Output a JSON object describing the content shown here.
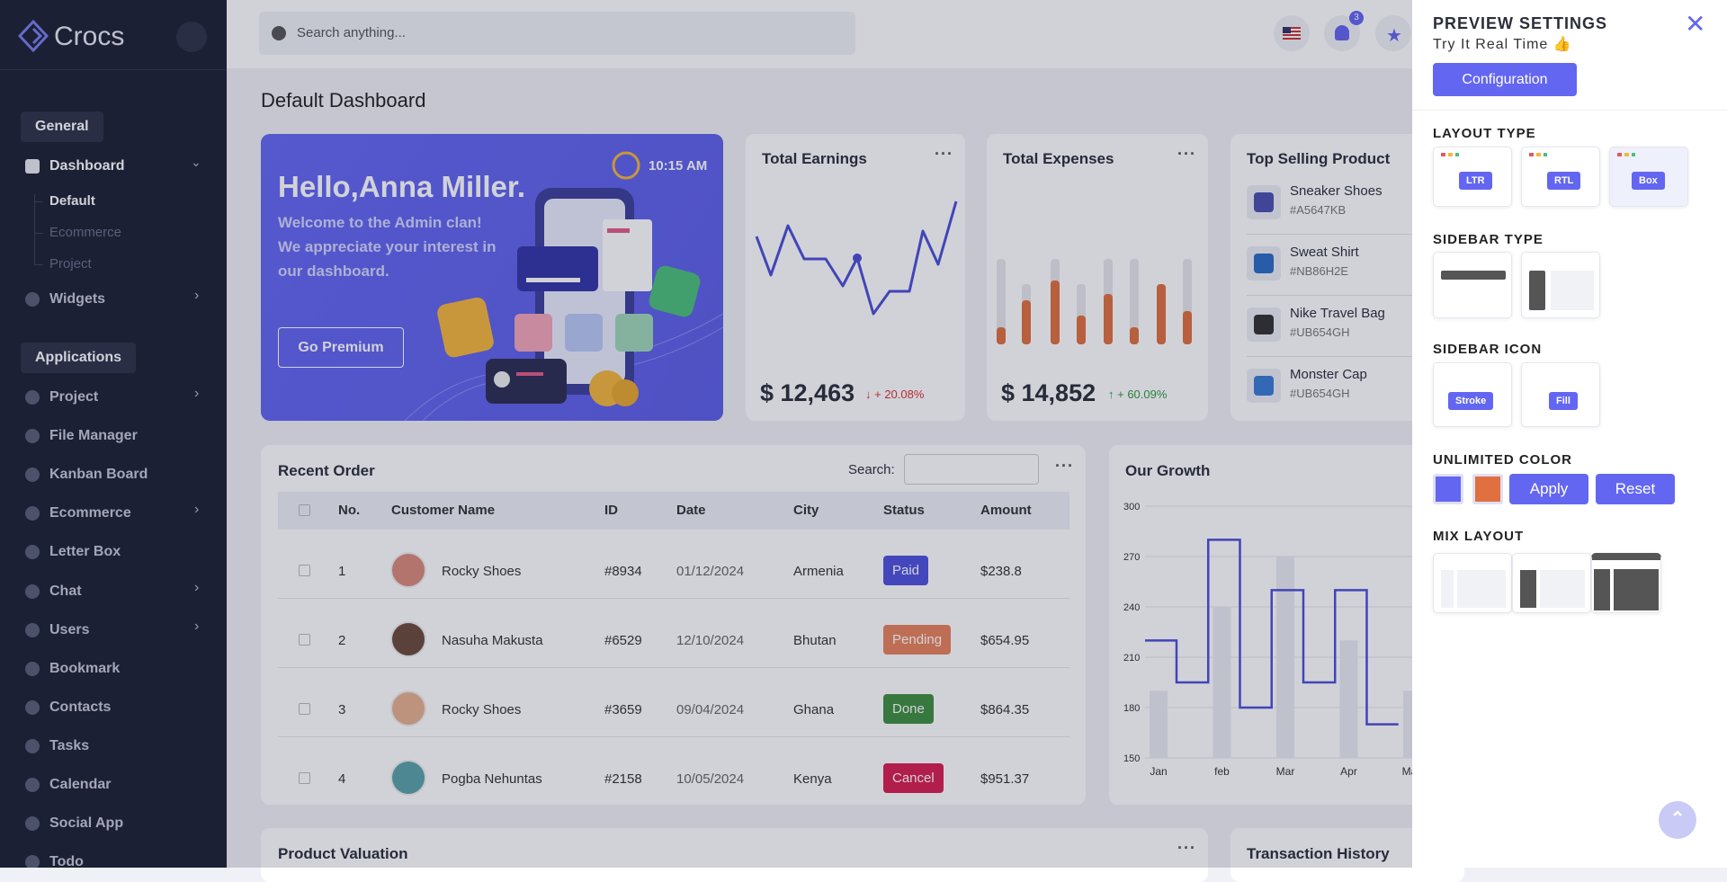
{
  "sidebar": {
    "brand": "Crocs",
    "general": "General",
    "dashboard": "Dashboard",
    "dashboard_children": [
      "Default",
      "Ecommerce",
      "Project"
    ],
    "widgets": "Widgets",
    "applications": "Applications",
    "apps": [
      "Project",
      "File Manager",
      "Kanban Board",
      "Ecommerce",
      "Letter Box",
      "Chat",
      "Users",
      "Bookmark",
      "Contacts",
      "Tasks",
      "Calendar",
      "Social App",
      "Todo"
    ]
  },
  "header": {
    "search_placeholder": "Search anything...",
    "notification_count": 3
  },
  "page_title": "Default Dashboard",
  "welcome": {
    "greeting": "Hello,Anna Miller.",
    "lines": [
      "Welcome to the Admin clan!",
      "We appreciate your interest in",
      "our dashboard."
    ],
    "time": "10:15 AM",
    "button": "Go Premium"
  },
  "earnings": {
    "title": "Total Earnings",
    "amount": "$ 12,463",
    "change": "+ 20.08%"
  },
  "expenses": {
    "title": "Total Expenses",
    "amount": "$ 14,852",
    "change": "+ 60.09%"
  },
  "top_selling": {
    "title": "Top Selling Product",
    "products": [
      {
        "name": "Sneaker Shoes",
        "code": "#A5647KB"
      },
      {
        "name": "Sweat Shirt",
        "code": "#NB86H2E"
      },
      {
        "name": "Nike Travel Bag",
        "code": "#UB654GH"
      },
      {
        "name": "Monster Cap",
        "code": "#UB654GH"
      }
    ]
  },
  "recent_order": {
    "title": "Recent Order",
    "search_label": "Search:",
    "columns": [
      "No.",
      "Customer Name",
      "ID",
      "Date",
      "City",
      "Status",
      "Amount"
    ],
    "rows": [
      [
        1,
        "Rocky Shoes",
        "#8934",
        "01/12/2024",
        "Armenia",
        "Paid",
        "$238.8"
      ],
      [
        2,
        "Nasuha Makusta",
        "#6529",
        "12/10/2024",
        "Bhutan",
        "Pending",
        "$654.95"
      ],
      [
        3,
        "Rocky Shoes",
        "#3659",
        "09/04/2024",
        "Ghana",
        "Done",
        "$864.35"
      ],
      [
        4,
        "Pogba Nehuntas",
        "#2158",
        "10/05/2024",
        "Kenya",
        "Cancel",
        "$951.37"
      ]
    ]
  },
  "growth": {
    "title": "Our Growth",
    "categories": [
      "Jan",
      "feb",
      "Mar",
      "Apr",
      "May"
    ],
    "ylim": [
      150,
      300
    ],
    "yticks": [
      150,
      180,
      210,
      240,
      270,
      300
    ],
    "bars": [
      190,
      240,
      270,
      220,
      190
    ],
    "line": [
      220,
      195,
      280,
      180,
      250,
      195,
      250,
      170
    ]
  },
  "product_valuation": {
    "title": "Product Valuation"
  },
  "transaction_history": {
    "title": "Transaction History"
  },
  "settings": {
    "title": "PREVIEW SETTINGS",
    "subtitle": "Try It Real Time",
    "configuration": "Configuration",
    "layout_type": {
      "label": "LAYOUT TYPE",
      "options": [
        "LTR",
        "RTL",
        "Box"
      ]
    },
    "sidebar_type": {
      "label": "SIDEBAR TYPE"
    },
    "sidebar_icon": {
      "label": "SIDEBAR ICON",
      "options": [
        "Stroke",
        "Fill"
      ]
    },
    "unlimited_color": {
      "label": "UNLIMITED COLOR",
      "apply": "Apply",
      "reset": "Reset"
    },
    "mix_layout": {
      "label": "MIX LAYOUT"
    }
  }
}
